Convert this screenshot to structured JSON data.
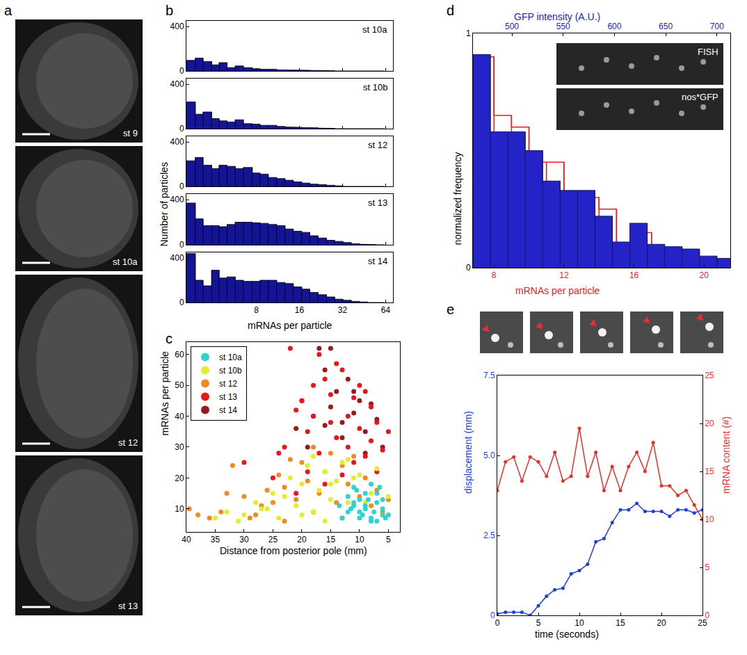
{
  "chart_data": [
    {
      "type": "image",
      "panel": "a",
      "labels": [
        "st 9",
        "st 10a",
        "st 12",
        "st 13"
      ]
    },
    {
      "type": "histogram",
      "panel": "b",
      "annotation": "st 10a",
      "color": "#141496",
      "log": "x",
      "bins": [
        2.6,
        3.0,
        3.4,
        3.9,
        4.4,
        5.0,
        5.7,
        6.5,
        7.5,
        8.5,
        9.7,
        11.1,
        12.7,
        14.5,
        16.6,
        18.9,
        21.6,
        24.7,
        28.2,
        32.2,
        36.8,
        42.0,
        48.0,
        54.8,
        62.6
      ],
      "values": [
        95,
        115,
        85,
        55,
        75,
        30,
        45,
        30,
        20,
        15,
        15,
        10,
        10,
        8,
        6,
        5,
        3,
        2,
        0,
        0,
        0,
        0,
        0,
        0
      ],
      "xlim": [
        2.6,
        72
      ],
      "xticks": [
        8,
        16,
        32,
        64
      ],
      "ylim": [
        0,
        450
      ],
      "yticks": [
        0,
        400
      ],
      "tick_labels": "y"
    },
    {
      "type": "histogram",
      "annotation": "st 10b",
      "color": "#141496",
      "log": "x",
      "bins": [
        2.6,
        3.0,
        3.4,
        3.9,
        4.4,
        5.0,
        5.7,
        6.5,
        7.5,
        8.5,
        9.7,
        11.1,
        12.7,
        14.5,
        16.6,
        18.9,
        21.6,
        24.7,
        28.2,
        32.2,
        36.8,
        42.0,
        48.0,
        54.8,
        62.6
      ],
      "values": [
        240,
        130,
        150,
        90,
        70,
        60,
        80,
        45,
        40,
        30,
        30,
        20,
        15,
        12,
        10,
        8,
        5,
        3,
        0,
        0,
        0,
        0,
        0,
        0
      ],
      "xlim": [
        2.6,
        72
      ],
      "xticks": [
        8,
        16,
        32,
        64
      ],
      "ylim": [
        0,
        450
      ],
      "yticks": [
        0,
        400
      ],
      "tick_labels": "y"
    },
    {
      "type": "histogram",
      "annotation": "st 12",
      "color": "#141496",
      "log": "x",
      "ylabel": "Number of particles",
      "bins": [
        2.6,
        3.0,
        3.4,
        3.9,
        4.4,
        5.0,
        5.7,
        6.5,
        7.5,
        8.5,
        9.7,
        11.1,
        12.7,
        14.5,
        16.6,
        18.9,
        21.6,
        24.7,
        28.2,
        32.2,
        36.8,
        42.0,
        48.0,
        54.8,
        62.6
      ],
      "values": [
        230,
        260,
        190,
        160,
        190,
        180,
        160,
        170,
        120,
        110,
        80,
        70,
        55,
        40,
        30,
        20,
        15,
        10,
        5,
        0,
        0,
        0,
        0,
        0
      ],
      "xlim": [
        2.6,
        72
      ],
      "xticks": [
        8,
        16,
        32,
        64
      ],
      "ylim": [
        0,
        450
      ],
      "yticks": [
        0,
        400
      ],
      "tick_labels": "y"
    },
    {
      "type": "histogram",
      "annotation": "st 13",
      "color": "#141496",
      "log": "x",
      "bins": [
        2.6,
        3.0,
        3.4,
        3.9,
        4.4,
        5.0,
        5.7,
        6.5,
        7.5,
        8.5,
        9.7,
        11.1,
        12.7,
        14.5,
        16.6,
        18.9,
        21.6,
        24.7,
        28.2,
        32.2,
        36.8,
        42.0,
        48.0,
        54.8,
        62.6
      ],
      "values": [
        370,
        230,
        170,
        170,
        160,
        180,
        200,
        200,
        195,
        190,
        180,
        170,
        140,
        120,
        110,
        80,
        60,
        40,
        30,
        20,
        10,
        5,
        2,
        0
      ],
      "xlim": [
        2.6,
        72
      ],
      "xticks": [
        8,
        16,
        32,
        64
      ],
      "ylim": [
        0,
        450
      ],
      "yticks": [
        0,
        400
      ],
      "tick_labels": "y"
    },
    {
      "type": "histogram",
      "annotation": "st 14",
      "color": "#141496",
      "log": "x",
      "xlabel": "mRNAs per particle",
      "bins": [
        2.6,
        3.0,
        3.4,
        3.9,
        4.4,
        5.0,
        5.7,
        6.5,
        7.5,
        8.5,
        9.7,
        11.1,
        12.7,
        14.5,
        16.6,
        18.9,
        21.6,
        24.7,
        28.2,
        32.2,
        36.8,
        42.0,
        48.0,
        54.8,
        62.6
      ],
      "values": [
        440,
        200,
        150,
        290,
        220,
        230,
        200,
        190,
        190,
        200,
        200,
        180,
        170,
        140,
        120,
        90,
        70,
        50,
        30,
        20,
        10,
        5,
        0,
        0
      ],
      "xlim": [
        2.6,
        72
      ],
      "xticks": [
        8,
        16,
        32,
        64
      ],
      "ylim": [
        0,
        450
      ],
      "yticks": [
        0,
        400
      ]
    },
    {
      "type": "scatter",
      "panel": "c",
      "xlabel": "Distance from posterior pole (mm)",
      "ylabel": "mRNAs per particle",
      "xlim": [
        40,
        3
      ],
      "xticks": [
        40,
        35,
        30,
        25,
        20,
        15,
        10,
        5
      ],
      "ylim": [
        2.5,
        64
      ],
      "yticks": [
        10,
        20,
        30,
        40,
        50,
        60
      ],
      "legend": "top-left",
      "marker": "circle",
      "series": [
        {
          "name": "st 10a",
          "color": "#2fd3d3",
          "x": [
            5,
            6,
            7,
            8,
            9,
            10,
            11,
            12,
            13,
            6.5,
            7.5,
            8.5,
            9.5,
            10.5,
            11.5,
            5.5,
            6,
            7,
            8,
            9,
            10,
            11,
            12,
            7,
            8,
            9,
            10,
            6,
            11,
            13.5
          ],
          "values": [
            8,
            10,
            12,
            7,
            15,
            9,
            11,
            14,
            7,
            17,
            9,
            13,
            8,
            16,
            10,
            7,
            13,
            6,
            18,
            11,
            7,
            12,
            9,
            15,
            6,
            10,
            13,
            8,
            17,
            11
          ]
        },
        {
          "name": "st 10b",
          "color": "#e2ee2a",
          "x": [
            35,
            33,
            30,
            28,
            26,
            25,
            23,
            22,
            21,
            20,
            19,
            18,
            17,
            16,
            15,
            14,
            13,
            12,
            11,
            10,
            9,
            8,
            7,
            6,
            5,
            24,
            18,
            15,
            12,
            9,
            20,
            27,
            31,
            16,
            11
          ],
          "values": [
            7,
            9,
            8,
            12,
            10,
            15,
            14,
            20,
            11,
            18,
            24,
            9,
            16,
            22,
            13,
            19,
            25,
            12,
            17,
            21,
            10,
            15,
            23,
            8,
            14,
            7,
            27,
            18,
            26,
            12,
            8,
            10,
            6,
            6,
            20
          ]
        },
        {
          "name": "st 12",
          "color": "#f28a1e",
          "x": [
            39.5,
            38,
            36,
            34,
            32,
            30,
            29,
            27,
            26,
            25,
            24,
            23,
            22,
            21,
            20,
            19,
            18,
            17,
            16,
            15,
            14,
            13,
            12,
            11,
            10,
            9,
            8,
            7,
            6,
            5,
            33,
            28,
            23,
            18,
            13
          ],
          "values": [
            10,
            8,
            7,
            9,
            24,
            14,
            7,
            11,
            16,
            12,
            21,
            17,
            26,
            13,
            25,
            19,
            30,
            15,
            22,
            28,
            12,
            24,
            18,
            27,
            14,
            20,
            11,
            16,
            9,
            13,
            15,
            8,
            6,
            9,
            7
          ]
        },
        {
          "name": "st 13",
          "color": "#e8161c",
          "x": [
            30,
            25,
            23,
            22,
            21,
            20,
            19,
            18,
            17,
            17,
            16,
            15,
            15,
            14,
            13,
            12,
            12,
            11,
            10,
            10,
            9,
            8,
            8,
            7,
            6,
            5,
            19,
            14,
            11,
            9,
            16,
            13,
            7,
            21,
            18,
            24
          ],
          "values": [
            25,
            20,
            30,
            62,
            42,
            45,
            35,
            50,
            60,
            28,
            52,
            38,
            47,
            33,
            55,
            40,
            30,
            46,
            36,
            50,
            27,
            43,
            32,
            38,
            29,
            35,
            22,
            57,
            25,
            48,
            18,
            21,
            22,
            15,
            40,
            28
          ]
        },
        {
          "name": "st 14",
          "color": "#9a1a1a",
          "x": [
            21,
            20,
            18,
            17,
            16,
            15,
            14,
            13,
            12,
            11,
            10,
            9,
            8,
            7,
            6,
            19,
            16,
            15,
            13,
            11,
            9
          ],
          "values": [
            36,
            45,
            40,
            62,
            55,
            43,
            48,
            38,
            52,
            41,
            45,
            35,
            44,
            39,
            30,
            30,
            37,
            62,
            33,
            48,
            28
          ]
        }
      ]
    },
    {
      "type": "histogram",
      "panel": "d",
      "xlabel": "mRNAs per particle",
      "x2label": "GFP intensity (A.U.)",
      "ylabel": "normalized frequency",
      "xlim": [
        6.8,
        21.5
      ],
      "xticks": [
        8,
        12,
        16,
        20
      ],
      "x2lim": [
        462,
        713
      ],
      "x2ticks": [
        500,
        550,
        600,
        650,
        700
      ],
      "ylim": [
        0,
        1
      ],
      "yticks": [
        0,
        1
      ],
      "inset_labels": [
        "FISH",
        "nos*GFP"
      ],
      "series": [
        {
          "type": "bar",
          "axis": "x2",
          "color": "#2323c8",
          "bins": [
            462,
            479,
            496,
            513,
            530,
            547,
            564,
            581,
            598,
            615,
            632,
            649,
            666,
            683,
            700,
            717
          ],
          "values": [
            0.91,
            0.58,
            0.58,
            0.5,
            0.37,
            0.33,
            0.33,
            0.22,
            0.11,
            0.19,
            0.1,
            0.09,
            0.08,
            0.05,
            0.04
          ]
        },
        {
          "type": "step",
          "color": "#ee1c1c",
          "bins": [
            7,
            8,
            9,
            10,
            11,
            12,
            13,
            14,
            15,
            16,
            17,
            18,
            19,
            20,
            21,
            22
          ],
          "values": [
            0.9,
            0.65,
            0.6,
            0.45,
            0.45,
            0.3,
            0.3,
            0.25,
            0.1,
            0.15,
            0.08,
            0.06,
            0.04,
            0.03,
            0.02
          ]
        }
      ]
    },
    {
      "type": "line",
      "panel": "e",
      "xlabel": "time (seconds)",
      "ylabel": "displacement (mm)",
      "y2label": "mRNA content (#)",
      "x": [
        0,
        1,
        2,
        3,
        4,
        5,
        6,
        7,
        8,
        9,
        10,
        11,
        12,
        13,
        14,
        15,
        16,
        17,
        18,
        19,
        20,
        21,
        22,
        23,
        24,
        25
      ],
      "xlim": [
        0,
        25
      ],
      "xticks": [
        0,
        5,
        10,
        15,
        20,
        25
      ],
      "ylim": [
        0,
        7.5
      ],
      "yticks": [
        0,
        2.5,
        {
          "value": 5,
          "label": "5.0"
        },
        7.5
      ],
      "y2lim": [
        0,
        25
      ],
      "y2ticks": [
        0,
        5,
        10,
        15,
        20,
        25
      ],
      "marker": "circle",
      "series": [
        {
          "color": "#1f3fd8",
          "values": [
            0.05,
            0.1,
            0.1,
            0.1,
            0,
            0.3,
            0.6,
            0.8,
            0.85,
            1.3,
            1.4,
            1.6,
            2.3,
            2.4,
            2.9,
            3.3,
            3.3,
            3.5,
            3.25,
            3.25,
            3.25,
            3.1,
            3.3,
            3.3,
            3.2,
            3.3
          ]
        },
        {
          "color": "#e8302a",
          "axis": "y2",
          "values": [
            13,
            16,
            16.5,
            14,
            16.5,
            16,
            14.5,
            17,
            14,
            14.5,
            19.5,
            14.5,
            17,
            13,
            15.5,
            13,
            15.5,
            17,
            15,
            18,
            13.5,
            13.5,
            12.5,
            13,
            11.5,
            10
          ]
        }
      ]
    }
  ]
}
